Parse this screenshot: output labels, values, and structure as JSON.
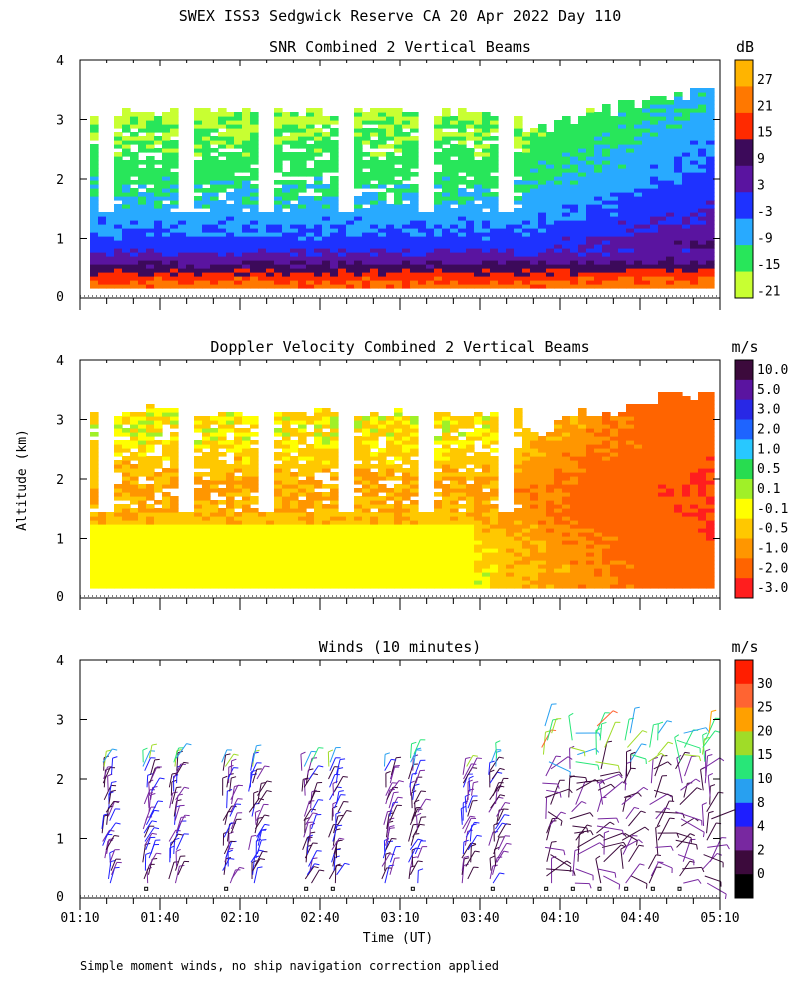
{
  "figure": {
    "title": "SWEX ISS3 Sedgwick Reserve CA  20 Apr 2022 Day 110",
    "ylabel": "Altitude (km)",
    "xlabel": "Time (UT)",
    "footnote": "Simple moment winds, no ship navigation correction applied",
    "x_ticks": [
      "01:10",
      "01:40",
      "02:10",
      "02:40",
      "03:10",
      "03:40",
      "04:10",
      "04:40",
      "05:10"
    ],
    "y_ticks": [
      "0",
      "1",
      "2",
      "3",
      "4"
    ]
  },
  "chart_data": [
    {
      "type": "heatmap",
      "title": "SNR Combined 2 Vertical Beams",
      "unit": "dB",
      "xlim": [
        "01:10",
        "05:10"
      ],
      "ylim": [
        0,
        4
      ],
      "colorbar_labels": [
        "27",
        "21",
        "15",
        "9",
        "3",
        "-3",
        "-9",
        "-15",
        "-21"
      ],
      "colors": [
        "#ffb400",
        "#ff7800",
        "#ff2a00",
        "#3c0a5a",
        "#5a14a0",
        "#1e32ff",
        "#28aaff",
        "#28e65a",
        "#c8ff32"
      ],
      "profile": [
        {
          "alt_km": 0.15,
          "value": 20
        },
        {
          "alt_km": 0.3,
          "value": 16
        },
        {
          "alt_km": 0.45,
          "value": 10
        },
        {
          "alt_km": 0.6,
          "value": 4
        },
        {
          "alt_km": 0.8,
          "value": -2
        },
        {
          "alt_km": 1.1,
          "value": -6
        },
        {
          "alt_km": 1.5,
          "value": -10
        },
        {
          "alt_km": 2.0,
          "value": -14
        },
        {
          "alt_km": 2.6,
          "value": -17
        },
        {
          "alt_km": 3.2,
          "value": -20
        }
      ]
    },
    {
      "type": "heatmap",
      "title": "Doppler Velocity Combined 2 Vertical Beams",
      "unit": "m/s",
      "xlim": [
        "01:10",
        "05:10"
      ],
      "ylim": [
        0,
        4
      ],
      "colorbar_labels": [
        "10.0",
        "5.0",
        "3.0",
        "2.0",
        "1.0",
        "0.5",
        "0.1",
        "-0.1",
        "-0.5",
        "-1.0",
        "-2.0",
        "-3.0"
      ],
      "colors": [
        "#3c0a3c",
        "#5a14a0",
        "#2828e6",
        "#1e64ff",
        "#28c8ff",
        "#28dc50",
        "#a0f028",
        "#ffff00",
        "#ffc800",
        "#ff9600",
        "#ff6400",
        "#ff1e1e"
      ],
      "profile": [
        {
          "alt_km": 0.3,
          "value": -0.1
        },
        {
          "alt_km": 1.0,
          "value": -0.3
        },
        {
          "alt_km": 1.8,
          "value": -0.6
        },
        {
          "alt_km": 2.6,
          "value": -0.1
        },
        {
          "alt_km": 3.0,
          "value": -0.05
        }
      ]
    },
    {
      "type": "scatter",
      "title": "Winds (10 minutes)",
      "unit": "m/s",
      "xlim": [
        "01:10",
        "05:10"
      ],
      "ylim": [
        0,
        4
      ],
      "colorbar_labels": [
        "30",
        "25",
        "20",
        "15",
        "10",
        "8",
        "4",
        "2",
        "0"
      ],
      "colors": [
        "#ff1e00",
        "#ff6432",
        "#ffa000",
        "#a0dc28",
        "#28e678",
        "#28a0f0",
        "#1e1eff",
        "#7828a0",
        "#3c0a3c",
        "#000000"
      ],
      "profile_times": [
        "01:20",
        "01:35",
        "01:45",
        "02:05",
        "02:15",
        "02:35",
        "02:45",
        "03:05",
        "03:15",
        "03:35",
        "03:45",
        "04:05",
        "04:15",
        "04:25",
        "04:35",
        "04:45",
        "04:55",
        "05:05"
      ]
    }
  ]
}
